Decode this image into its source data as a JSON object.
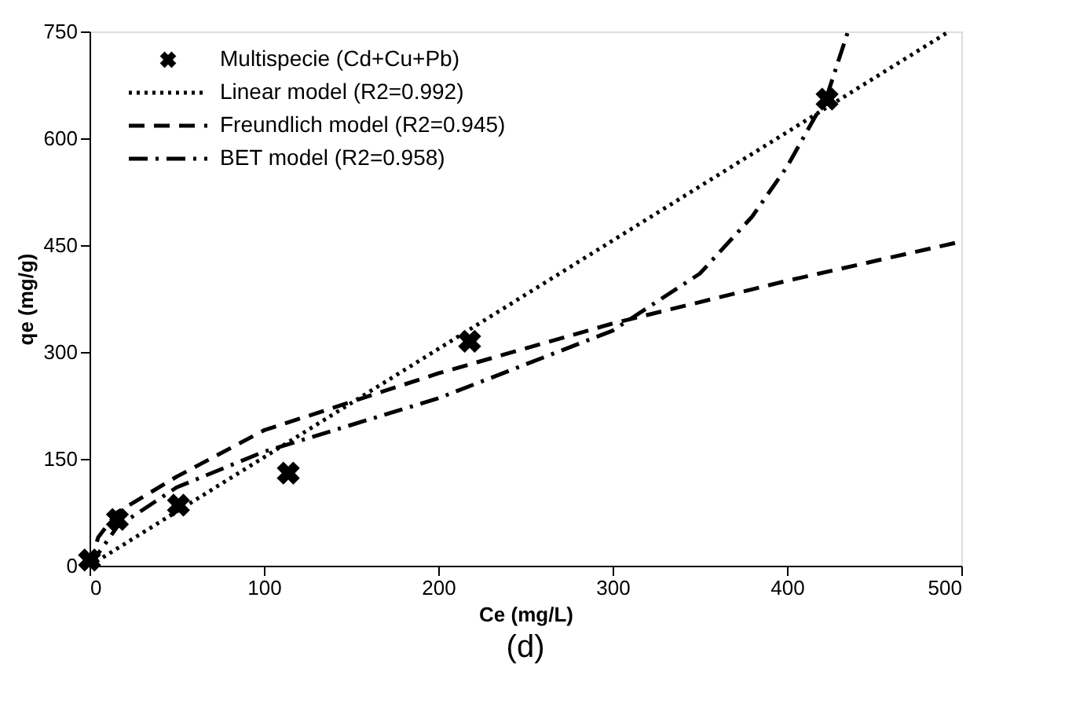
{
  "chart_data": {
    "type": "scatter",
    "xlabel": "Ce (mg/L)",
    "ylabel": "qe (mg/g)",
    "annotations": [
      "(d)"
    ],
    "xlim": [
      0,
      500
    ],
    "xticks": [
      0,
      100,
      200,
      300,
      400,
      500
    ],
    "ylim": [
      0,
      750
    ],
    "yticks": [
      0,
      150,
      300,
      450,
      600,
      750
    ],
    "grid": false,
    "legend": "top left",
    "series": [
      {
        "name": "Multispecie (Cd+Cu+Pb)",
        "marker": "cross",
        "color": "#000000",
        "x": [
          0,
          16,
          51,
          114,
          218,
          423
        ],
        "values": [
          8,
          65,
          85,
          130,
          315,
          655
        ]
      },
      {
        "name": "Linear model (R2=0.992)",
        "type": "line",
        "line_style": "dotted",
        "color": "#000000",
        "x": [
          0,
          493
        ],
        "values": [
          0,
          750
        ]
      },
      {
        "name": "Freundlich model (R2=0.945)",
        "type": "line",
        "line_style": "dashed",
        "color": "#000000",
        "x": [
          0,
          5,
          16,
          50,
          100,
          150,
          200,
          300,
          400,
          500
        ],
        "values": [
          0,
          40,
          75,
          125,
          190,
          230,
          270,
          340,
          400,
          455
        ]
      },
      {
        "name": "BET model (R2=0.958)",
        "type": "line",
        "line_style": "dashdot",
        "color": "#000000",
        "x": [
          0,
          16,
          50,
          100,
          200,
          300,
          350,
          380,
          400,
          423,
          435
        ],
        "values": [
          0,
          55,
          110,
          160,
          235,
          330,
          410,
          490,
          560,
          660,
          750
        ]
      }
    ]
  }
}
